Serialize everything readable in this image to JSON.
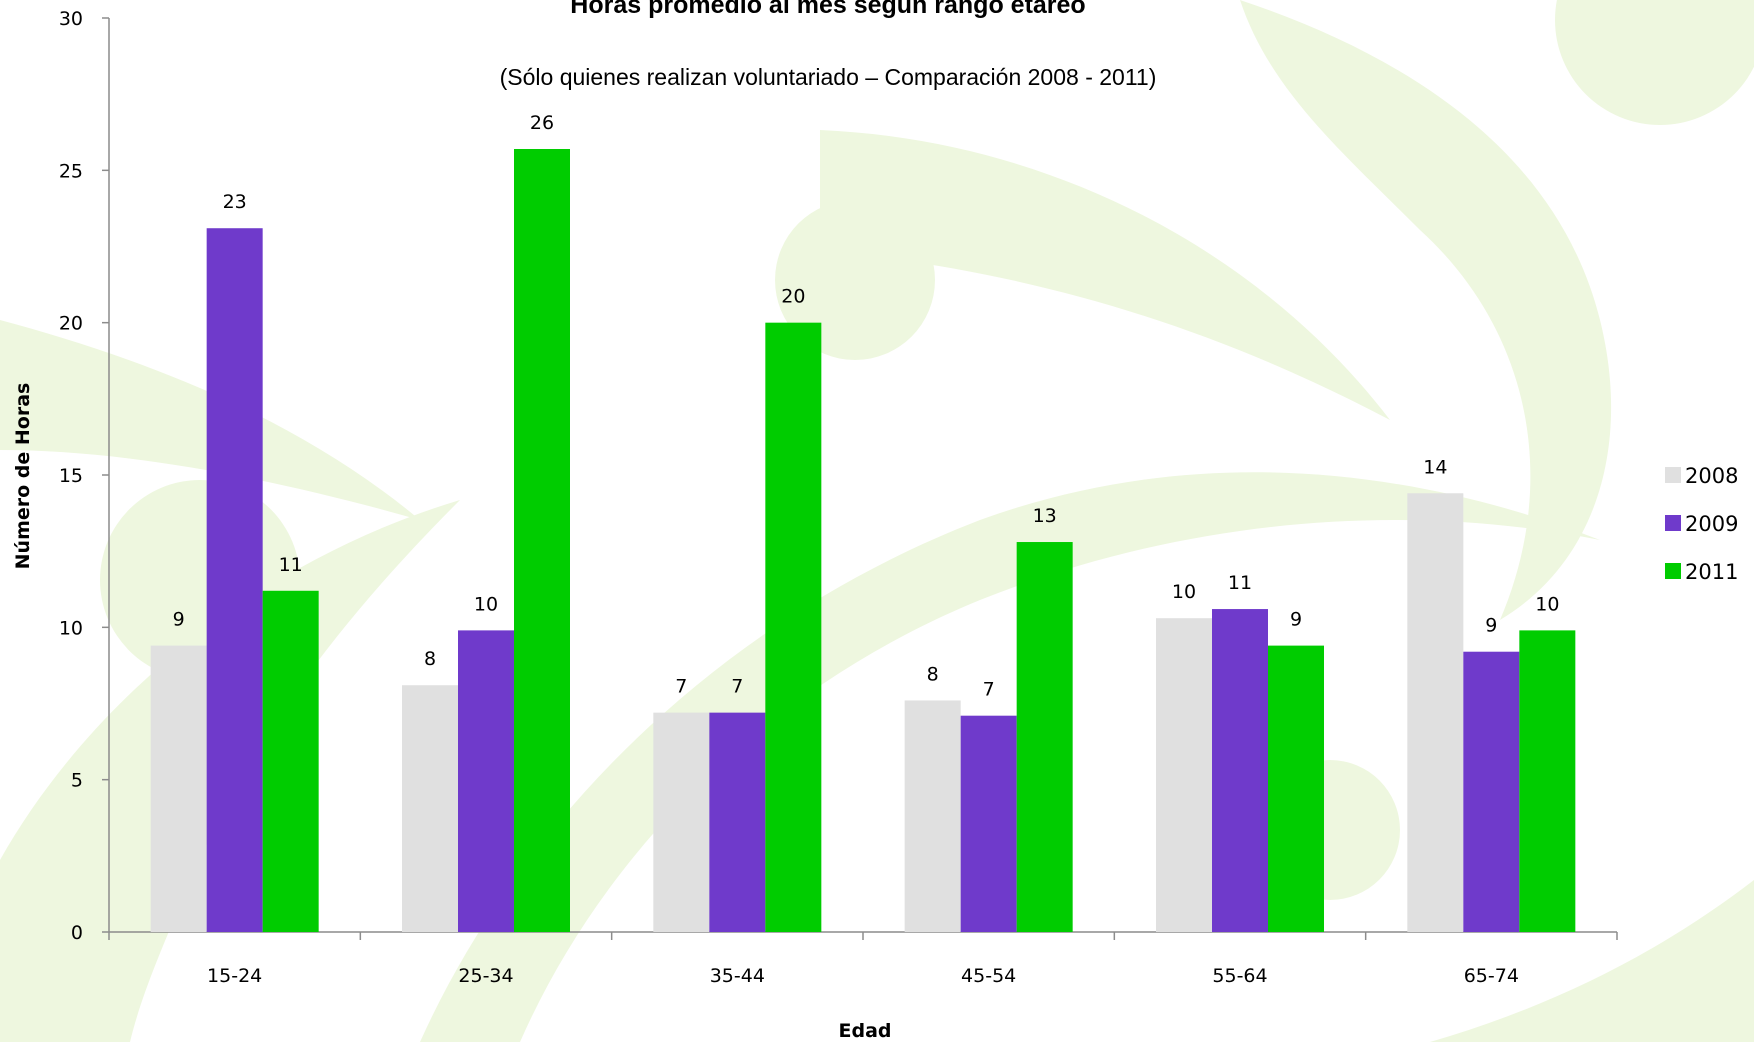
{
  "chart_data": {
    "type": "bar",
    "title": "Horas promedio al mes según rango etareo",
    "subtitle": "(Sólo quienes realizan voluntariado – Comparación 2008 - 2011)",
    "xlabel": "Edad",
    "ylabel": "Número de Horas",
    "ylim": [
      0,
      30
    ],
    "yticks": [
      "0",
      "5",
      "10",
      "15",
      "20",
      "25",
      "30"
    ],
    "categories": [
      "15-24",
      "25-34",
      "35-44",
      "45-54",
      "55-64",
      "65-74"
    ],
    "series": [
      {
        "name": "2008",
        "color": "#e0e0e0",
        "values": [
          9.4,
          8.1,
          7.2,
          7.6,
          10.3,
          14.4
        ],
        "labels": [
          "9",
          "8",
          "7",
          "8",
          "10",
          "14"
        ]
      },
      {
        "name": "2009",
        "color": "#6f3acb",
        "values": [
          23.1,
          9.9,
          7.2,
          7.1,
          10.6,
          9.2
        ],
        "labels": [
          "23",
          "10",
          "7",
          "7",
          "11",
          "9"
        ]
      },
      {
        "name": "2011",
        "color": "#00cc00",
        "values": [
          11.2,
          25.7,
          20.0,
          12.8,
          9.4,
          9.9
        ],
        "labels": [
          "11",
          "26",
          "20",
          "13",
          "9",
          "10"
        ]
      }
    ],
    "grid": false,
    "legend": "right"
  }
}
